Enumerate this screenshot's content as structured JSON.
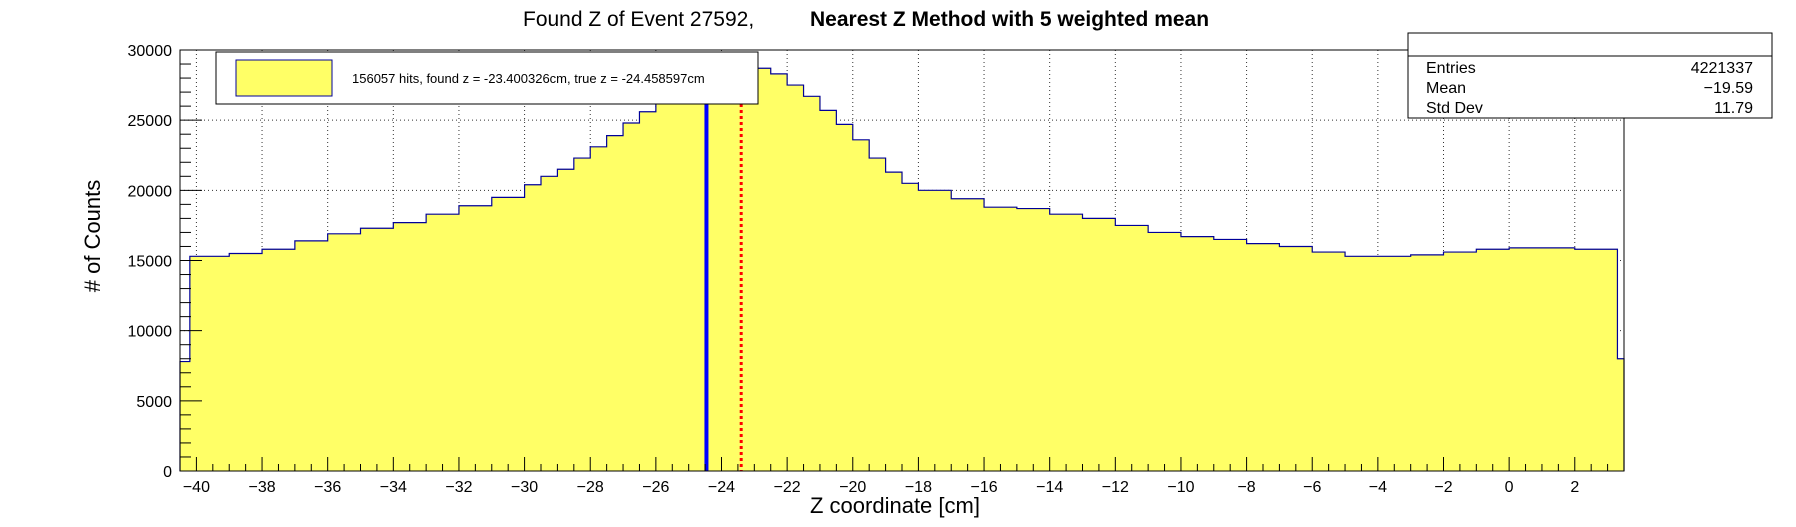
{
  "title": {
    "part1": "Found Z of Event 27592,",
    "part2": "Nearest Z Method with 5 weighted mean"
  },
  "legend": {
    "label": "156057 hits, found z = -23.400326cm, true z = -24.458597cm"
  },
  "stats": {
    "rows": [
      {
        "label": "Entries",
        "value": "4221337"
      },
      {
        "label": "Mean",
        "value": "−19.59"
      },
      {
        "label": "Std Dev",
        "value": "11.79"
      }
    ]
  },
  "colors": {
    "fill": "#ffff66",
    "outline": "#000099",
    "true_line": "#0000ff",
    "found_line": "#ff0000",
    "grid": "#000000"
  },
  "chart_data": {
    "type": "bar",
    "subtype": "histogram",
    "title": "Found Z of Event 27592,   Nearest Z Method with 5 weighted mean",
    "xlabel": "Z coordinate [cm]",
    "ylabel": "# of Counts",
    "xlim": [
      -40.5,
      3.5
    ],
    "ylim": [
      0,
      30000
    ],
    "grid": true,
    "x_ticks": [
      -40,
      -38,
      -36,
      -34,
      -32,
      -30,
      -28,
      -26,
      -24,
      -22,
      -20,
      -18,
      -16,
      -14,
      -12,
      -10,
      -8,
      -6,
      -4,
      -2,
      0,
      2
    ],
    "x_tick_labels": [
      "−40",
      "−38",
      "−36",
      "−34",
      "−32",
      "−30",
      "−28",
      "−26",
      "−24",
      "−22",
      "−20",
      "−18",
      "−16",
      "−14",
      "−12",
      "−10",
      "−8",
      "−6",
      "−4",
      "−2",
      "0",
      "2"
    ],
    "y_ticks": [
      0,
      5000,
      10000,
      15000,
      20000,
      25000,
      30000
    ],
    "y_tick_labels": [
      "0",
      "5000",
      "10000",
      "15000",
      "20000",
      "25000",
      "30000"
    ],
    "bin_edges_x": [
      -40.5,
      -40.2,
      -39.0,
      -38.0,
      -37.0,
      -36.0,
      -35.0,
      -34.0,
      -33.0,
      -32.0,
      -31.0,
      -30.0,
      -29.5,
      -29.0,
      -28.5,
      -28.0,
      -27.5,
      -27.0,
      -26.5,
      -26.0,
      -25.5,
      -25.0,
      -24.5,
      -24.0,
      -23.5,
      -23.0,
      -22.5,
      -22.0,
      -21.5,
      -21.0,
      -20.5,
      -20.0,
      -19.5,
      -19.0,
      -18.5,
      -18.0,
      -17.0,
      -16.0,
      -15.0,
      -14.0,
      -13.0,
      -12.0,
      -11.0,
      -10.0,
      -9.0,
      -8.0,
      -7.0,
      -6.0,
      -5.0,
      -4.0,
      -3.0,
      -2.0,
      -1.0,
      0.0,
      1.0,
      2.0,
      3.3,
      3.5
    ],
    "bin_values": [
      7800,
      15300,
      15500,
      15800,
      16400,
      16900,
      17300,
      17700,
      18300,
      18900,
      19500,
      20400,
      21000,
      21500,
      22300,
      23100,
      23900,
      24800,
      25600,
      26600,
      27500,
      28100,
      28500,
      28900,
      28800,
      28700,
      28300,
      27500,
      26700,
      25700,
      24700,
      23600,
      22300,
      21300,
      20500,
      20000,
      19400,
      18800,
      18700,
      18300,
      18000,
      17500,
      17000,
      16700,
      16500,
      16200,
      16000,
      15600,
      15300,
      15300,
      15400,
      15600,
      15800,
      15900,
      15900,
      15800,
      8000
    ],
    "true_z": -24.458597,
    "found_z": -23.400326,
    "stats": {
      "entries": 4221337,
      "mean": -19.59,
      "std_dev": 11.79
    }
  }
}
